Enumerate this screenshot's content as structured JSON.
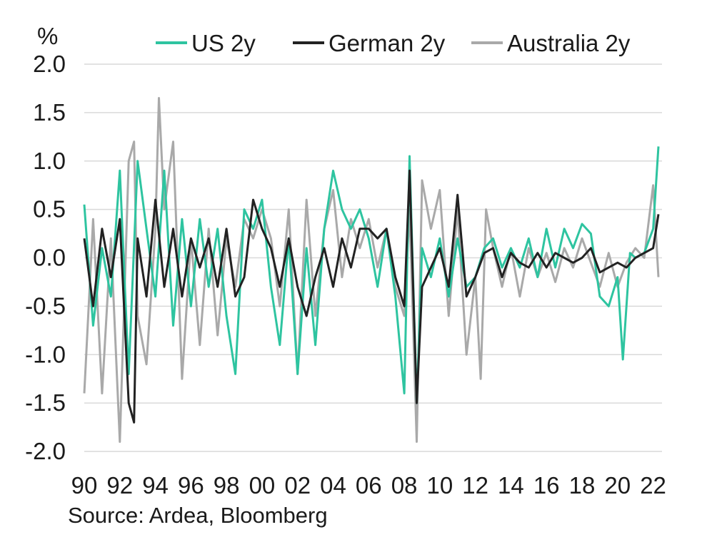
{
  "chart_data": {
    "type": "line",
    "title": "",
    "xlabel": "",
    "ylabel": "%",
    "source": "Source: Ardea, Bloomberg",
    "ylim": [
      -2.0,
      2.0
    ],
    "xlim": [
      1990,
      2022.5
    ],
    "y_ticks": [
      "2.0",
      "1.5",
      "1.0",
      "0.5",
      "0.0",
      "-0.5",
      "-1.0",
      "-1.5",
      "-2.0"
    ],
    "x_ticks": [
      "90",
      "92",
      "94",
      "96",
      "98",
      "00",
      "02",
      "04",
      "06",
      "08",
      "10",
      "12",
      "14",
      "16",
      "18",
      "20",
      "22"
    ],
    "grid": "horizontal",
    "legend_position": "top",
    "series": [
      {
        "name": "US 2y",
        "color": "#2ec4a0",
        "points": [
          [
            1990.0,
            0.55
          ],
          [
            1990.5,
            -0.7
          ],
          [
            1991.0,
            0.1
          ],
          [
            1991.5,
            -0.4
          ],
          [
            1992.0,
            0.9
          ],
          [
            1992.5,
            -1.2
          ],
          [
            1993.0,
            1.0
          ],
          [
            1993.5,
            0.3
          ],
          [
            1994.0,
            -0.4
          ],
          [
            1994.5,
            0.9
          ],
          [
            1995.0,
            -0.7
          ],
          [
            1995.5,
            0.4
          ],
          [
            1996.0,
            -0.5
          ],
          [
            1996.5,
            0.4
          ],
          [
            1997.0,
            -0.3
          ],
          [
            1997.5,
            0.3
          ],
          [
            1998.0,
            -0.6
          ],
          [
            1998.5,
            -1.2
          ],
          [
            1999.0,
            0.5
          ],
          [
            1999.5,
            0.3
          ],
          [
            2000.0,
            0.6
          ],
          [
            2000.5,
            -0.3
          ],
          [
            2001.0,
            -0.9
          ],
          [
            2001.5,
            0.2
          ],
          [
            2002.0,
            -1.2
          ],
          [
            2002.5,
            0.1
          ],
          [
            2003.0,
            -0.9
          ],
          [
            2003.5,
            0.3
          ],
          [
            2004.0,
            0.9
          ],
          [
            2004.5,
            0.5
          ],
          [
            2005.0,
            0.3
          ],
          [
            2005.5,
            0.5
          ],
          [
            2006.0,
            0.2
          ],
          [
            2006.5,
            -0.3
          ],
          [
            2007.0,
            0.3
          ],
          [
            2007.5,
            -0.4
          ],
          [
            2008.0,
            -1.4
          ],
          [
            2008.3,
            1.05
          ],
          [
            2008.7,
            -1.5
          ],
          [
            2009.0,
            0.1
          ],
          [
            2009.5,
            -0.2
          ],
          [
            2010.0,
            0.2
          ],
          [
            2010.5,
            -0.4
          ],
          [
            2011.0,
            0.2
          ],
          [
            2011.5,
            -0.3
          ],
          [
            2012.0,
            -0.2
          ],
          [
            2012.5,
            0.1
          ],
          [
            2013.0,
            0.2
          ],
          [
            2013.5,
            -0.1
          ],
          [
            2014.0,
            0.1
          ],
          [
            2014.5,
            -0.1
          ],
          [
            2015.0,
            0.2
          ],
          [
            2015.5,
            -0.2
          ],
          [
            2016.0,
            0.3
          ],
          [
            2016.5,
            -0.1
          ],
          [
            2017.0,
            0.3
          ],
          [
            2017.5,
            0.1
          ],
          [
            2018.0,
            0.35
          ],
          [
            2018.5,
            0.25
          ],
          [
            2019.0,
            -0.4
          ],
          [
            2019.5,
            -0.5
          ],
          [
            2020.0,
            -0.2
          ],
          [
            2020.3,
            -1.05
          ],
          [
            2020.7,
            0.05
          ],
          [
            2021.0,
            0.0
          ],
          [
            2021.5,
            0.05
          ],
          [
            2022.0,
            0.3
          ],
          [
            2022.3,
            1.15
          ]
        ]
      },
      {
        "name": "German 2y",
        "color": "#222222",
        "points": [
          [
            1990.0,
            0.2
          ],
          [
            1990.5,
            -0.5
          ],
          [
            1991.0,
            0.3
          ],
          [
            1991.5,
            -0.2
          ],
          [
            1992.0,
            0.4
          ],
          [
            1992.5,
            -1.5
          ],
          [
            1992.8,
            -1.7
          ],
          [
            1993.0,
            0.2
          ],
          [
            1993.5,
            -0.4
          ],
          [
            1994.0,
            0.6
          ],
          [
            1994.5,
            -0.3
          ],
          [
            1995.0,
            0.3
          ],
          [
            1995.5,
            -0.4
          ],
          [
            1996.0,
            0.2
          ],
          [
            1996.5,
            -0.1
          ],
          [
            1997.0,
            0.2
          ],
          [
            1997.5,
            -0.3
          ],
          [
            1998.0,
            0.3
          ],
          [
            1998.5,
            -0.4
          ],
          [
            1999.0,
            -0.2
          ],
          [
            1999.5,
            0.6
          ],
          [
            2000.0,
            0.3
          ],
          [
            2000.5,
            0.1
          ],
          [
            2001.0,
            -0.3
          ],
          [
            2001.5,
            0.2
          ],
          [
            2002.0,
            -0.3
          ],
          [
            2002.5,
            -0.6
          ],
          [
            2003.0,
            -0.2
          ],
          [
            2003.5,
            0.1
          ],
          [
            2004.0,
            -0.3
          ],
          [
            2004.5,
            0.2
          ],
          [
            2005.0,
            -0.1
          ],
          [
            2005.5,
            0.3
          ],
          [
            2006.0,
            0.3
          ],
          [
            2006.5,
            0.2
          ],
          [
            2007.0,
            0.3
          ],
          [
            2007.5,
            -0.2
          ],
          [
            2008.0,
            -0.5
          ],
          [
            2008.3,
            0.9
          ],
          [
            2008.7,
            -1.5
          ],
          [
            2009.0,
            -0.3
          ],
          [
            2009.5,
            -0.1
          ],
          [
            2010.0,
            0.1
          ],
          [
            2010.5,
            -0.3
          ],
          [
            2011.0,
            0.65
          ],
          [
            2011.5,
            -0.4
          ],
          [
            2012.0,
            -0.2
          ],
          [
            2012.5,
            0.05
          ],
          [
            2013.0,
            0.1
          ],
          [
            2013.5,
            -0.2
          ],
          [
            2014.0,
            0.05
          ],
          [
            2014.5,
            -0.05
          ],
          [
            2015.0,
            -0.1
          ],
          [
            2015.5,
            0.05
          ],
          [
            2016.0,
            -0.1
          ],
          [
            2016.5,
            0.05
          ],
          [
            2017.0,
            0.0
          ],
          [
            2017.5,
            -0.05
          ],
          [
            2018.0,
            0.0
          ],
          [
            2018.5,
            0.1
          ],
          [
            2019.0,
            -0.15
          ],
          [
            2019.5,
            -0.1
          ],
          [
            2020.0,
            -0.05
          ],
          [
            2020.5,
            -0.1
          ],
          [
            2021.0,
            0.0
          ],
          [
            2021.5,
            0.05
          ],
          [
            2022.0,
            0.1
          ],
          [
            2022.3,
            0.45
          ]
        ]
      },
      {
        "name": "Australia 2y",
        "color": "#a9a9a9",
        "points": [
          [
            1990.0,
            -1.4
          ],
          [
            1990.5,
            0.4
          ],
          [
            1991.0,
            -1.4
          ],
          [
            1991.5,
            0.2
          ],
          [
            1992.0,
            -1.9
          ],
          [
            1992.5,
            1.0
          ],
          [
            1992.8,
            1.2
          ],
          [
            1993.0,
            -0.6
          ],
          [
            1993.5,
            -1.1
          ],
          [
            1994.0,
            0.3
          ],
          [
            1994.2,
            1.65
          ],
          [
            1994.5,
            0.5
          ],
          [
            1995.0,
            1.2
          ],
          [
            1995.5,
            -1.25
          ],
          [
            1996.0,
            0.2
          ],
          [
            1996.5,
            -0.9
          ],
          [
            1997.0,
            0.3
          ],
          [
            1997.5,
            -0.8
          ],
          [
            1998.0,
            0.2
          ],
          [
            1998.5,
            -0.3
          ],
          [
            1999.0,
            0.4
          ],
          [
            1999.5,
            0.2
          ],
          [
            2000.0,
            0.5
          ],
          [
            2000.5,
            0.2
          ],
          [
            2001.0,
            -0.5
          ],
          [
            2001.5,
            0.5
          ],
          [
            2002.0,
            -1.2
          ],
          [
            2002.5,
            0.6
          ],
          [
            2003.0,
            -0.6
          ],
          [
            2003.5,
            0.3
          ],
          [
            2004.0,
            0.7
          ],
          [
            2004.5,
            -0.2
          ],
          [
            2005.0,
            0.4
          ],
          [
            2005.5,
            0.1
          ],
          [
            2006.0,
            0.4
          ],
          [
            2006.5,
            -0.1
          ],
          [
            2007.0,
            0.3
          ],
          [
            2007.5,
            -0.3
          ],
          [
            2008.0,
            -0.6
          ],
          [
            2008.3,
            0.5
          ],
          [
            2008.7,
            -1.9
          ],
          [
            2009.0,
            0.8
          ],
          [
            2009.5,
            0.3
          ],
          [
            2010.0,
            0.7
          ],
          [
            2010.5,
            -0.6
          ],
          [
            2011.0,
            0.5
          ],
          [
            2011.5,
            -1.0
          ],
          [
            2012.0,
            -0.2
          ],
          [
            2012.3,
            -1.25
          ],
          [
            2012.6,
            0.5
          ],
          [
            2013.0,
            0.1
          ],
          [
            2013.5,
            -0.3
          ],
          [
            2014.0,
            0.1
          ],
          [
            2014.5,
            -0.4
          ],
          [
            2015.0,
            0.1
          ],
          [
            2015.5,
            -0.2
          ],
          [
            2016.0,
            0.05
          ],
          [
            2016.5,
            -0.25
          ],
          [
            2017.0,
            0.1
          ],
          [
            2017.5,
            -0.1
          ],
          [
            2018.0,
            0.2
          ],
          [
            2018.5,
            -0.05
          ],
          [
            2019.0,
            -0.3
          ],
          [
            2019.5,
            0.05
          ],
          [
            2020.0,
            -0.3
          ],
          [
            2020.5,
            -0.05
          ],
          [
            2021.0,
            0.1
          ],
          [
            2021.5,
            0.0
          ],
          [
            2022.0,
            0.75
          ],
          [
            2022.3,
            -0.2
          ]
        ]
      }
    ]
  }
}
